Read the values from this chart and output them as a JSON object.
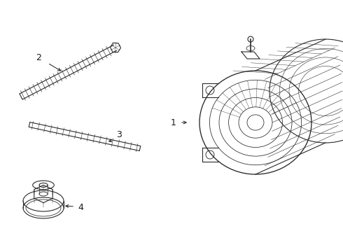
{
  "background_color": "#ffffff",
  "line_color": "#2a2a2a",
  "label_color": "#1a1a1a",
  "label_fontsize": 9,
  "fig_width": 4.9,
  "fig_height": 3.6,
  "dpi": 100
}
